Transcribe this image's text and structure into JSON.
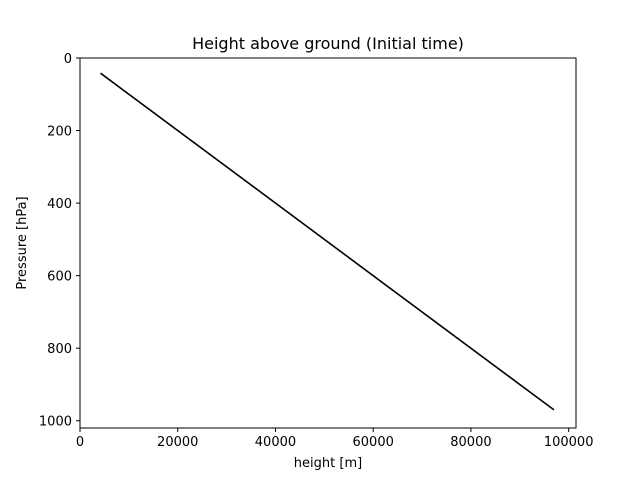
{
  "chart_data": {
    "type": "line",
    "title": "Height above ground (Initial time)",
    "xlabel": "height [m]",
    "ylabel": "Pressure [hPa]",
    "xlim": [
      0,
      101500
    ],
    "ylim": [
      1020,
      0
    ],
    "y_inverted": true,
    "grid": false,
    "legend": "none",
    "xticks": [
      0,
      20000,
      40000,
      60000,
      80000,
      100000
    ],
    "xtick_labels": [
      "0",
      "20000",
      "40000",
      "60000",
      "80000",
      "100000"
    ],
    "yticks": [
      0,
      200,
      400,
      600,
      800,
      1000
    ],
    "ytick_labels": [
      "0",
      "200",
      "400",
      "600",
      "800",
      "1000"
    ],
    "series": [
      {
        "x": [
          4200,
          97000
        ],
        "y": [
          42,
          970
        ],
        "color": "#000000"
      }
    ]
  }
}
